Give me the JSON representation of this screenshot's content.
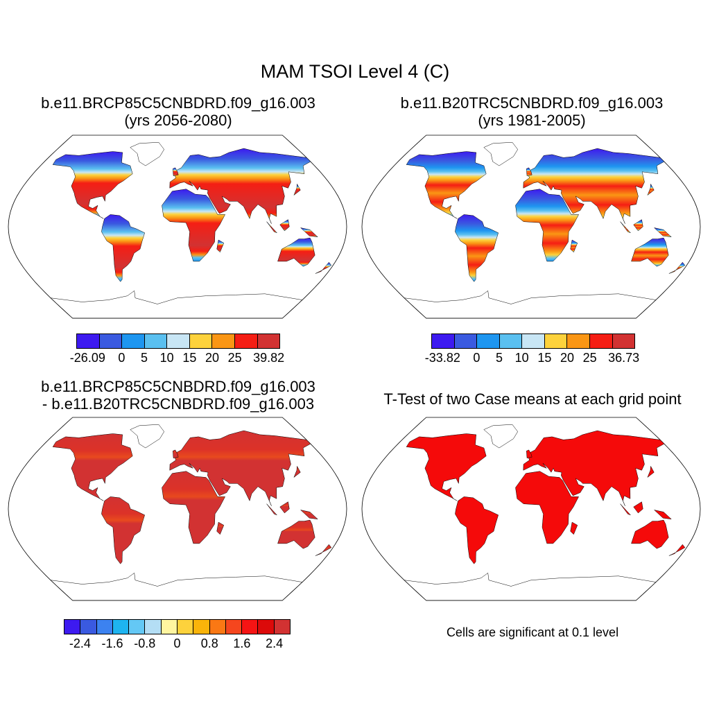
{
  "title": "MAM TSOI Level 4 (C)",
  "panels": [
    {
      "line1": "b.e11.BRCP85C5CNBDRD.f09_g16.003",
      "line2": "(yrs 2056-2080)",
      "colorbar": {
        "colors": [
          "#3d1af0",
          "#3a5ae0",
          "#1e96f0",
          "#5ac0f0",
          "#c8e6f5",
          "#fdd23c",
          "#fa9614",
          "#f51e14",
          "#d23232"
        ],
        "labels": [
          "-26.09",
          "0",
          "5",
          "10",
          "15",
          "20",
          "25",
          "39.82"
        ]
      }
    },
    {
      "line1": "b.e11.B20TRC5CNBDRD.f09_g16.003",
      "line2": "(yrs 1981-2005)",
      "colorbar": {
        "colors": [
          "#3d1af0",
          "#3a5ae0",
          "#1e96f0",
          "#5ac0f0",
          "#c8e6f5",
          "#fdd23c",
          "#fa9614",
          "#f51e14",
          "#d23232"
        ],
        "labels": [
          "-33.82",
          "0",
          "5",
          "10",
          "15",
          "20",
          "25",
          "36.73"
        ]
      }
    },
    {
      "line1": "b.e11.BRCP85C5CNBDRD.f09_g16.003",
      "line2": "- b.e11.B20TRC5CNBDRD.f09_g16.003",
      "colorbar": {
        "colors": [
          "#3d1af0",
          "#3a5ae0",
          "#3c82f0",
          "#1eb4f0",
          "#64c8f5",
          "#b4def5",
          "#fff5a0",
          "#fdd23c",
          "#fab40a",
          "#fa7814",
          "#f5461e",
          "#f51414",
          "#dc0a0a",
          "#d23232"
        ],
        "labels": [
          "-2.4",
          "-1.6",
          "-0.8",
          "0",
          "0.8",
          "1.6",
          "2.4"
        ]
      }
    },
    {
      "line1": "T-Test of two Case means at each grid point",
      "note": "Cells are significant at 0.1 level"
    }
  ]
}
